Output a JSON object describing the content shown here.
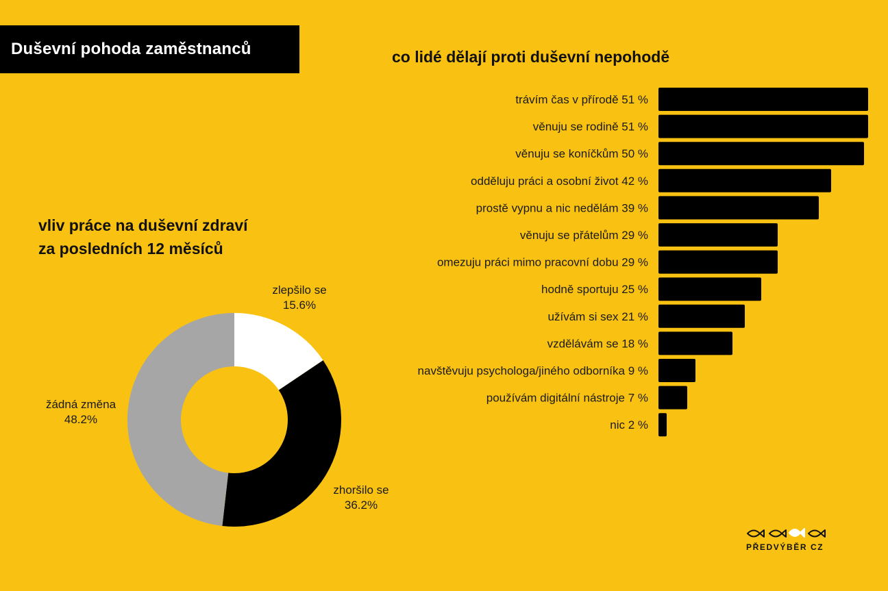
{
  "header": {
    "title": "Duševní pohoda zaměstnanců"
  },
  "chart_data": [
    {
      "type": "bar",
      "orientation": "horizontal",
      "title": "co lidé dělají proti duševní nepohodě",
      "categories": [
        "trávím čas v přírodě 51 %",
        "věnuju se rodině 51 %",
        "věnuju se koníčkům 50 %",
        "odděluju práci a osobní život 42 %",
        "prostě vypnu a nic nedělám 39 %",
        "věnuju se přátelům 29 %",
        "omezuju práci mimo pracovní dobu 29 %",
        "hodně sportuju 25 %",
        "užívám si sex 21 %",
        "vzdělávám se 18 %",
        "navštěvuju psychologa/jiného odborníka 9 %",
        "používám digitální nástroje 7 %",
        "nic 2 %"
      ],
      "values": [
        51,
        51,
        50,
        42,
        39,
        29,
        29,
        25,
        21,
        18,
        9,
        7,
        2
      ],
      "bar_color": "#000000"
    },
    {
      "type": "pie",
      "variant": "donut",
      "title_lines": [
        "vliv práce na duševní zdraví",
        "za posledních 12 měsíců"
      ],
      "slices": [
        {
          "label": "zlepšilo se",
          "value_label": "15.6%",
          "value": 15.6,
          "color": "#FFFFFF"
        },
        {
          "label": "zhoršilo se",
          "value_label": "36.2%",
          "value": 36.2,
          "color": "#000000"
        },
        {
          "label": "žádná změna",
          "value_label": "48.2%",
          "value": 48.2,
          "color": "#A6A6A6"
        }
      ]
    }
  ],
  "logo": {
    "text": "PŘEDVÝBĚR CZ",
    "icon": "fish-icons"
  },
  "colors": {
    "background": "#F9C112",
    "title_box": "#000000",
    "title_text": "#FFFFFF"
  }
}
